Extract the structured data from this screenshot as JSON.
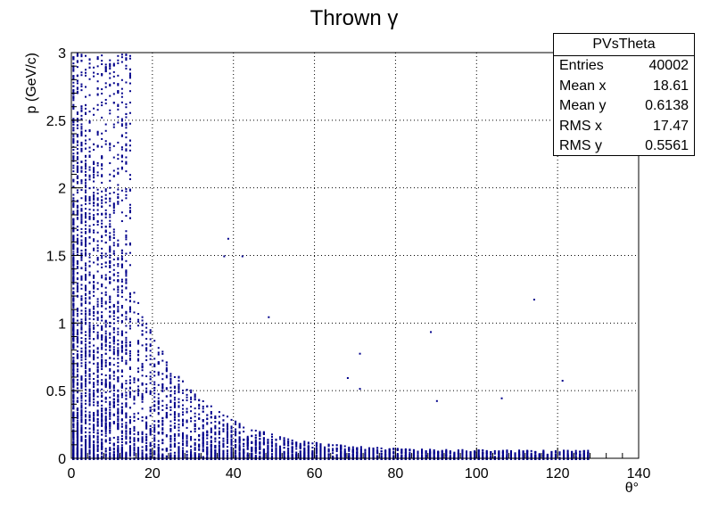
{
  "chart_data": {
    "type": "scatter",
    "title": "Thrown γ",
    "xlabel": "θ°",
    "ylabel": "p (GeV/c)",
    "xlim": [
      0,
      140
    ],
    "ylim": [
      0,
      3
    ],
    "x_ticks": [
      "0",
      "20",
      "40",
      "60",
      "80",
      "100",
      "120",
      "140"
    ],
    "y_ticks": [
      "0",
      "0.5",
      "1",
      "1.5",
      "2",
      "2.5",
      "3"
    ],
    "grid": true,
    "marker_color": "#00008b",
    "stats": {
      "name": "PVsTheta",
      "rows": [
        {
          "label": "Entries",
          "value": "40002"
        },
        {
          "label": "Mean x",
          "value": "18.61"
        },
        {
          "label": "Mean y",
          "value": "0.6138"
        },
        {
          "label": "RMS x",
          "value": "17.47"
        },
        {
          "label": "RMS y",
          "value": "0.5561"
        }
      ]
    },
    "series": [
      {
        "distribution": "dense band",
        "x_range": [
          0,
          128
        ],
        "y_range": [
          0,
          3
        ],
        "outliers": [
          {
            "x": 114,
            "y": 1.18
          },
          {
            "x": 88.5,
            "y": 0.94
          },
          {
            "x": 71,
            "y": 0.78
          },
          {
            "x": 48.5,
            "y": 1.05
          },
          {
            "x": 42,
            "y": 1.5
          },
          {
            "x": 37.5,
            "y": 1.5
          },
          {
            "x": 38.5,
            "y": 1.63
          },
          {
            "x": 121,
            "y": 0.58
          },
          {
            "x": 106,
            "y": 0.45
          },
          {
            "x": 90,
            "y": 0.43
          },
          {
            "x": 71,
            "y": 0.52
          },
          {
            "x": 68,
            "y": 0.6
          }
        ]
      }
    ]
  }
}
